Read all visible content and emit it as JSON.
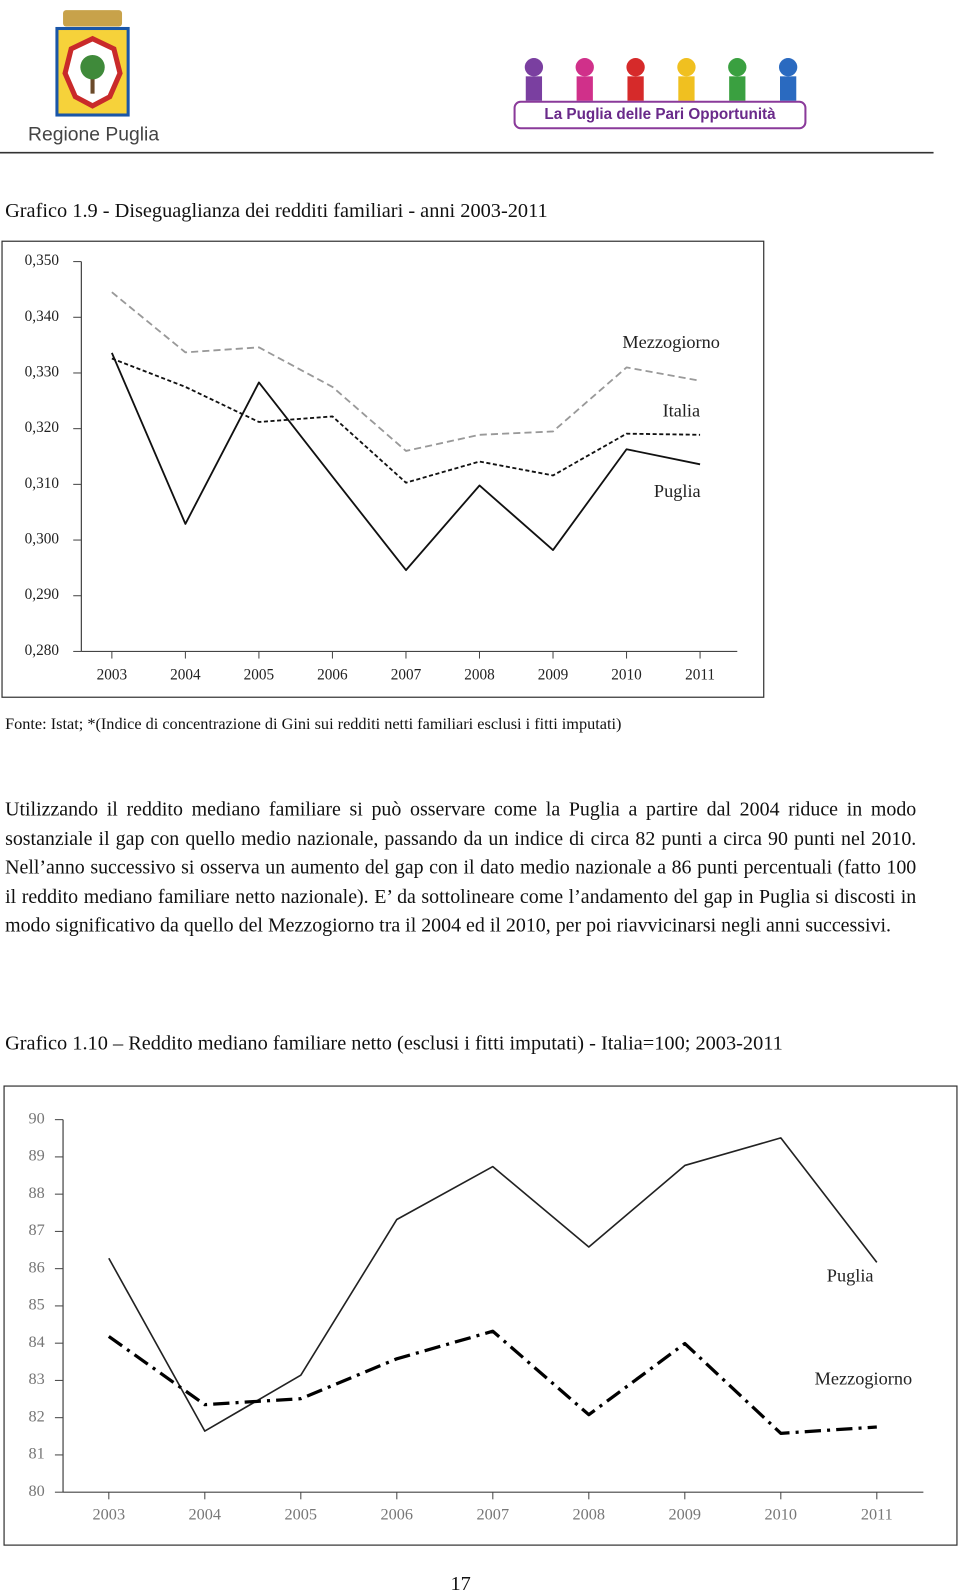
{
  "header": {
    "logo_left_text": "Regione Puglia",
    "logo_right_text": "La Puglia delle Pari Opportunità"
  },
  "caption_1": "Grafico 1.9 - Diseguaglianza dei redditi familiari - anni 2003-2011",
  "source_1": "Fonte: Istat; *(Indice di concentrazione di Gini sui redditi netti familiari esclusi i fitti imputati)",
  "paragraph": "Utilizzando il reddito mediano familiare si può osservare come la Puglia a partire dal 2004 riduce in modo sostanziale il gap con quello medio nazionale, passando da un indice di circa 82 punti a circa 90 punti nel 2010. Nell’anno successivo si osserva un aumento del gap con il dato medio nazionale a 86 punti percentuali (fatto 100 il reddito mediano familiare netto nazionale). E’ da sottolineare come l’andamento del gap in Puglia si discosti in modo significativo da quello del Mezzogiorno tra il 2004 ed il 2010, per poi riavvicinarsi negli anni successivi.",
  "caption_2": "Grafico 1.10 – Reddito mediano familiare netto (esclusi i fitti imputati) - Italia=100; 2003-2011",
  "page_number": "17",
  "chart_data": [
    {
      "type": "line",
      "categories": [
        "2003",
        "2004",
        "2005",
        "2006",
        "2007",
        "2008",
        "2009",
        "2010",
        "2011"
      ],
      "series": [
        {
          "name": "Mezzogiorno",
          "color": "#999999",
          "style": "dashed",
          "values": [
            0.3445,
            0.3337,
            0.3346,
            0.3275,
            0.316,
            0.3189,
            0.3195,
            0.331,
            0.3286
          ]
        },
        {
          "name": "Italia",
          "color": "#111111",
          "style": "dotted",
          "values": [
            0.3326,
            0.3275,
            0.3212,
            0.3222,
            0.3103,
            0.3141,
            0.3116,
            0.3191,
            0.3189
          ]
        },
        {
          "name": "Puglia",
          "color": "#111111",
          "style": "solid",
          "values": [
            0.3336,
            0.3029,
            0.3283,
            0.3114,
            0.2946,
            0.3098,
            0.2982,
            0.3163,
            0.3136
          ]
        }
      ],
      "ylim": [
        0.28,
        0.35
      ],
      "yticks": [
        {
          "value": 0.28,
          "label": "0,280"
        },
        {
          "value": 0.29,
          "label": "0,290"
        },
        {
          "value": 0.3,
          "label": "0,300"
        },
        {
          "value": 0.31,
          "label": "0,310"
        },
        {
          "value": 0.32,
          "label": "0,320"
        },
        {
          "value": 0.33,
          "label": "0,330"
        },
        {
          "value": 0.34,
          "label": "0,340"
        },
        {
          "value": 0.35,
          "label": "0,350"
        }
      ],
      "grid": false
    },
    {
      "type": "line",
      "categories": [
        "2003",
        "2004",
        "2005",
        "2006",
        "2007",
        "2008",
        "2009",
        "2010",
        "2011"
      ],
      "series": [
        {
          "name": "Puglia",
          "color": "#222222",
          "style": "solid",
          "values": [
            86.28,
            81.64,
            83.14,
            87.32,
            88.74,
            86.58,
            88.77,
            89.51,
            86.17
          ]
        },
        {
          "name": "Mezzogiorno",
          "color": "#000000",
          "style": "dashdot",
          "values": [
            84.18,
            82.35,
            82.51,
            83.58,
            84.32,
            82.08,
            83.99,
            81.58,
            81.75
          ]
        }
      ],
      "ylim": [
        80,
        90
      ],
      "yticks": [
        80,
        81,
        82,
        83,
        84,
        85,
        86,
        87,
        88,
        89,
        90
      ],
      "grid": false
    }
  ]
}
